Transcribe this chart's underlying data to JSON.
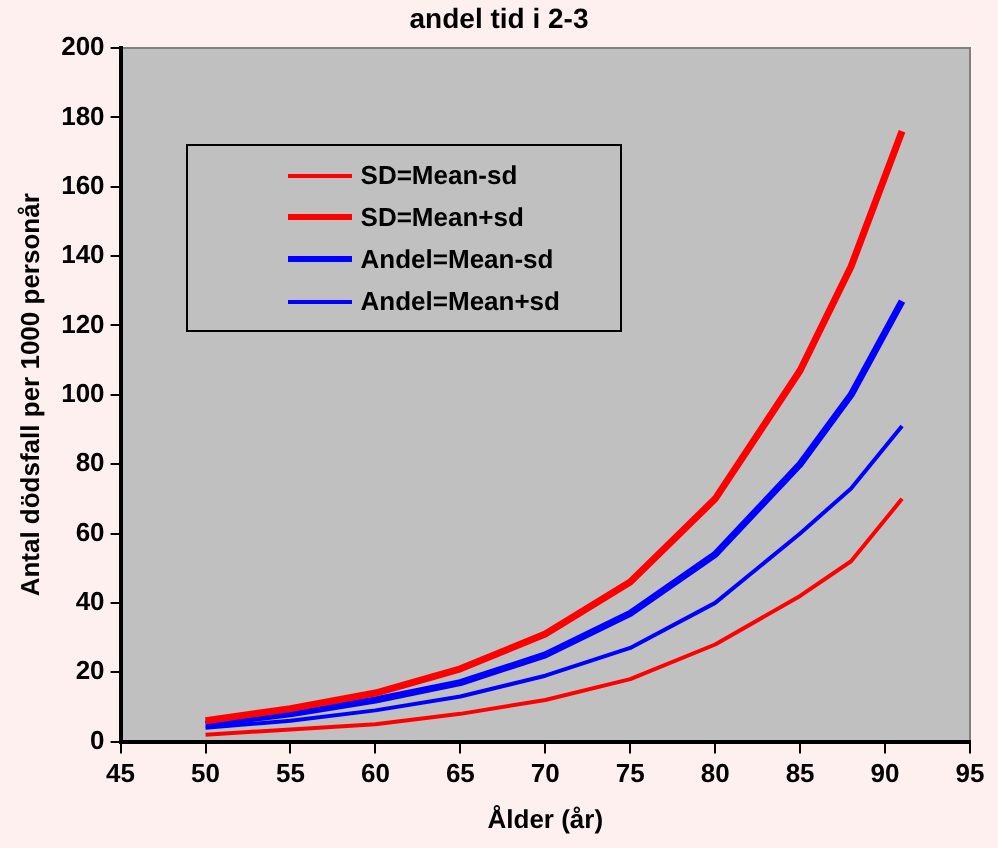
{
  "chart_data": {
    "type": "line",
    "title": "andel tid i 2-3",
    "xlabel": "Ålder (år)",
    "ylabel": "Antal dödsfall per 1000 personår",
    "x": [
      50,
      55,
      60,
      65,
      70,
      75,
      80,
      85,
      88,
      91
    ],
    "series": [
      {
        "name": "SD=Mean-sd",
        "color": "#ff0000",
        "values": [
          2,
          3.5,
          5,
          8,
          12,
          18,
          28,
          42,
          52,
          70
        ]
      },
      {
        "name": "SD=Mean+sd",
        "color": "#ff0000",
        "values": [
          6,
          9.5,
          14,
          21,
          31,
          46,
          70,
          107,
          137,
          176
        ]
      },
      {
        "name": "Andel=Mean-sd",
        "color": "#0000ff",
        "values": [
          5,
          8,
          12,
          17,
          25,
          37,
          54,
          80,
          100,
          127
        ]
      },
      {
        "name": "Andel=Mean+sd",
        "color": "#0000ff",
        "values": [
          4,
          6,
          9,
          13,
          19,
          27,
          40,
          60,
          73,
          91
        ]
      }
    ],
    "xlim": [
      45,
      95
    ],
    "xticks": [
      45,
      50,
      55,
      60,
      65,
      70,
      75,
      80,
      85,
      90,
      95
    ],
    "ylim": [
      0,
      200
    ],
    "yticks": [
      0,
      20,
      40,
      60,
      80,
      100,
      120,
      140,
      160,
      180,
      200
    ],
    "grid": false,
    "legend": "top left",
    "marker": "none",
    "line_style": "solid"
  }
}
